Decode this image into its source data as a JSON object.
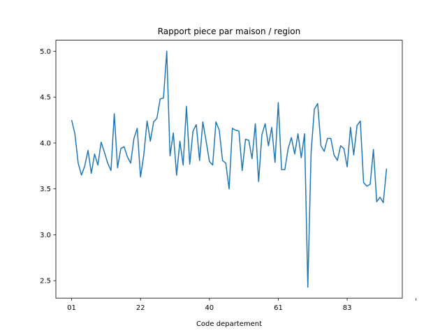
{
  "chart_data": {
    "type": "line",
    "title": "Rapport piece par maison / region",
    "xlabel": "Code departement",
    "ylabel": "",
    "grid": false,
    "legend": false,
    "ylim": [
      2.31,
      5.12
    ],
    "y_ticks": [
      "2.5",
      "3.0",
      "3.5",
      "4.0",
      "4.5",
      "5.0"
    ],
    "x_ticks": [
      "01",
      "22",
      "40",
      "61",
      "83",
      ""
    ],
    "x_tick_indices": [
      0,
      21,
      42,
      63,
      84,
      105
    ],
    "series": [
      {
        "name": "",
        "color": "#1f77b4",
        "values": [
          4.25,
          4.1,
          3.78,
          3.65,
          3.75,
          3.92,
          3.67,
          3.88,
          3.76,
          4.01,
          3.9,
          3.78,
          3.7,
          4.32,
          3.73,
          3.94,
          3.96,
          3.85,
          3.78,
          4.05,
          4.16,
          3.63,
          3.87,
          4.24,
          4.02,
          4.23,
          4.27,
          4.48,
          4.49,
          5.0,
          3.86,
          4.11,
          3.65,
          4.02,
          3.76,
          4.4,
          3.77,
          4.13,
          4.2,
          3.81,
          4.23,
          4.02,
          3.8,
          3.76,
          4.23,
          4.14,
          3.81,
          3.78,
          3.5,
          4.16,
          4.14,
          4.13,
          3.7,
          4.04,
          4.03,
          3.83,
          4.21,
          3.58,
          4.09,
          4.21,
          3.97,
          4.17,
          3.79,
          4.44,
          3.71,
          3.71,
          3.94,
          4.06,
          3.88,
          4.1,
          3.84,
          4.1,
          2.43,
          3.9,
          4.37,
          4.43,
          3.97,
          3.91,
          4.05,
          4.05,
          3.87,
          3.81,
          3.97,
          3.94,
          3.74,
          4.17,
          3.87,
          4.19,
          4.24,
          3.57,
          3.53,
          3.55,
          3.93,
          3.36,
          3.41,
          3.35,
          3.72
        ]
      }
    ]
  }
}
